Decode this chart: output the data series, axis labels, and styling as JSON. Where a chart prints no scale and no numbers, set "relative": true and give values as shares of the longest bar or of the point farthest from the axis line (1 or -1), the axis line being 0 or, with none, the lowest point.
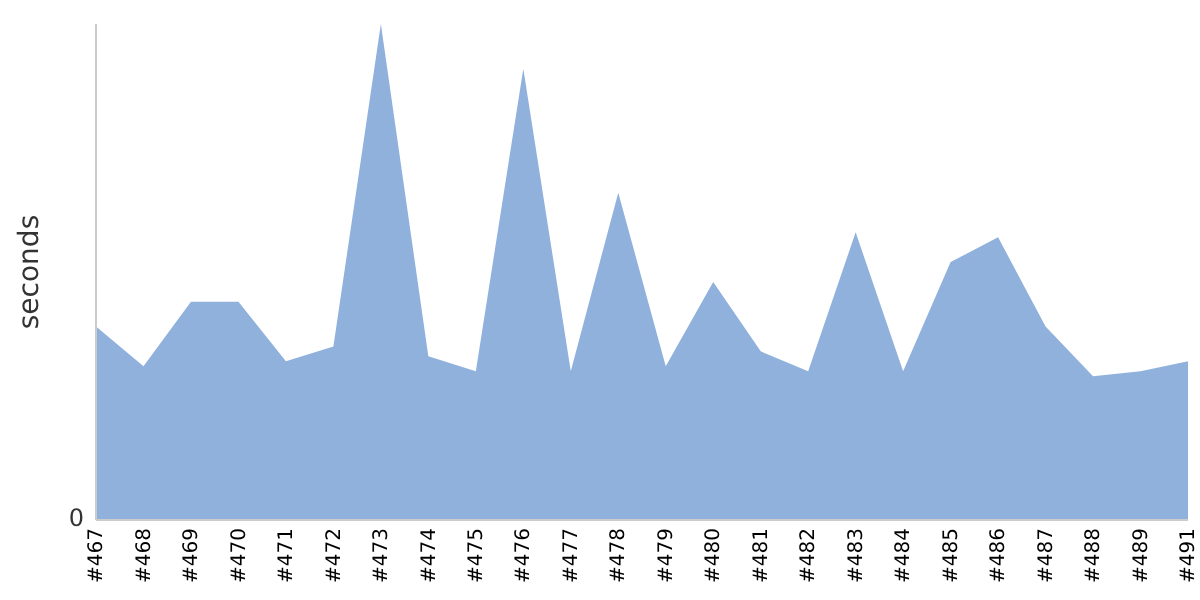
{
  "chart_data": {
    "type": "area",
    "ylabel": "seconds",
    "relative": true,
    "annotations": [
      "0"
    ],
    "categories": [
      "#467",
      "#468",
      "#469",
      "#470",
      "#471",
      "#472",
      "#473",
      "#474",
      "#475",
      "#476",
      "#477",
      "#478",
      "#479",
      "#480",
      "#481",
      "#482",
      "#483",
      "#484",
      "#485",
      "#486",
      "#487",
      "#488",
      "#489",
      "#491"
    ],
    "series": [
      {
        "color": "#8fb1dc",
        "values": [
          0.39,
          0.31,
          0.44,
          0.44,
          0.32,
          0.35,
          1,
          0.33,
          0.3,
          0.91,
          0.3,
          0.66,
          0.31,
          0.48,
          0.34,
          0.3,
          0.58,
          0.3,
          0.52,
          0.57,
          0.39,
          0.29,
          0.3,
          0.32
        ]
      }
    ],
    "grid": false,
    "legend": false
  }
}
